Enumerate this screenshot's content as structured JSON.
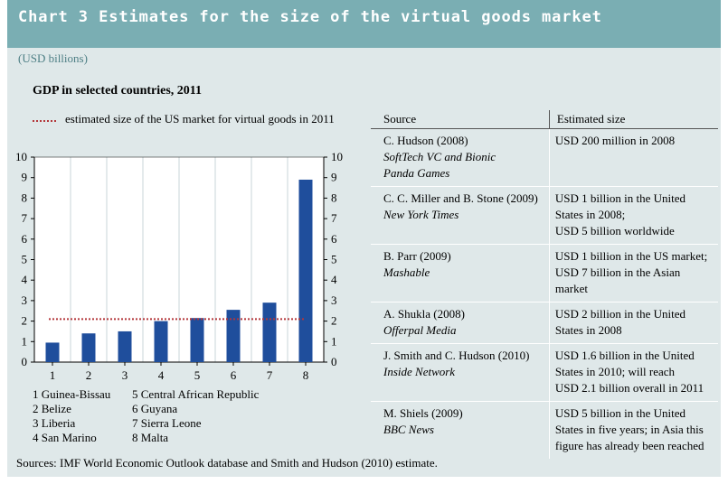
{
  "header": {
    "title": "Chart 3 Estimates for the size of the virtual goods market"
  },
  "unit_label": "(USD billions)",
  "chart_data": {
    "type": "bar",
    "title": "GDP in selected countries, 2011",
    "categories": [
      "1",
      "2",
      "3",
      "4",
      "5",
      "6",
      "7",
      "8"
    ],
    "values": [
      0.95,
      1.4,
      1.5,
      2.0,
      2.15,
      2.55,
      2.9,
      8.9
    ],
    "reference_line": {
      "value": 2.1,
      "label": "estimated size of the US market for virtual goods in  2011"
    },
    "ylim": [
      0,
      10
    ],
    "yticks": [
      0,
      1,
      2,
      3,
      4,
      5,
      6,
      7,
      8,
      9,
      10
    ],
    "xlabel": "",
    "ylabel": "",
    "bar_color": "#1f4e9c",
    "line_color": "#b3363a",
    "grid": "vertical"
  },
  "country_legend": {
    "col1": [
      "1 Guinea-Bissau",
      "2 Belize",
      "3 Liberia",
      "4 San Marino"
    ],
    "col2": [
      "5 Central African Republic",
      "6 Guyana",
      "7 Sierra Leone",
      "8 Malta"
    ]
  },
  "table": {
    "headers": [
      "Source",
      "Estimated size"
    ],
    "rows": [
      {
        "author": "C. Hudson (2008)",
        "publication": [
          "SoftTech VC and Bionic",
          "Panda Games"
        ],
        "estimate": [
          "USD 200 million in 2008"
        ]
      },
      {
        "author": "C. C. Miller and B. Stone (2009)",
        "publication": [
          "New York Times"
        ],
        "estimate": [
          "USD 1 billion in the United",
          "States in 2008;",
          "USD 5 billion worldwide"
        ]
      },
      {
        "author": "B. Parr (2009)",
        "publication": [
          "Mashable"
        ],
        "estimate": [
          "USD 1 billion in the US market;",
          "USD 7 billion in the Asian",
          "market"
        ]
      },
      {
        "author": "A. Shukla (2008)",
        "publication": [
          "Offerpal Media"
        ],
        "estimate": [
          "USD 2 billion in the United",
          "States in 2008"
        ]
      },
      {
        "author": "J. Smith and C. Hudson (2010)",
        "publication": [
          "Inside Network"
        ],
        "estimate": [
          "USD 1.6 billion in the United",
          "States in 2010; will reach",
          "USD 2.1 billion overall in 2011"
        ]
      },
      {
        "author": "M. Shiels (2009)",
        "publication": [
          "BBC News"
        ],
        "estimate": [
          "USD 5 billion in the United",
          "States in five years; in Asia this",
          "figure has already been reached"
        ]
      }
    ]
  },
  "footer": "Sources: IMF World Economic Outlook database and Smith and Hudson (2010) estimate."
}
